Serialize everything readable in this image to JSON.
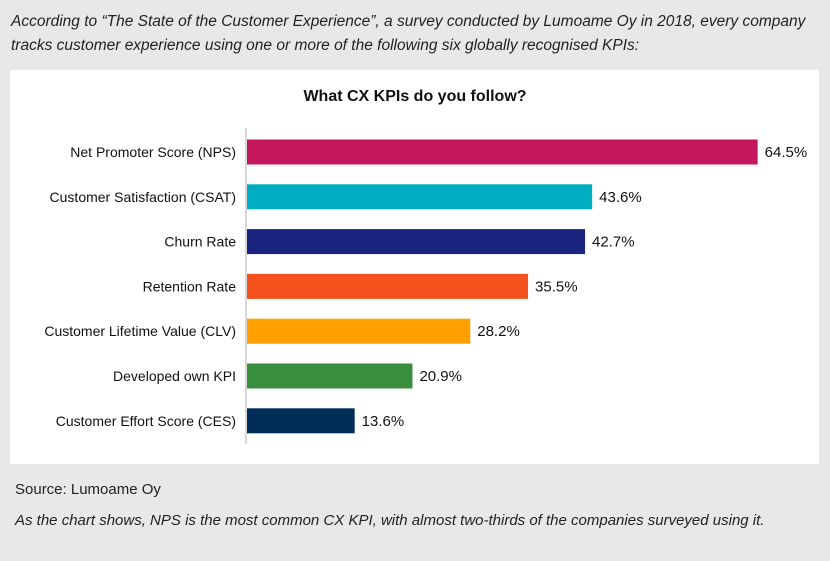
{
  "intro": "According to “The State of the Customer Experience”, a survey conducted by Lumoame Oy in 2018, every company tracks customer experience using one or more of the following six globally recognised KPIs:",
  "source": "Source: Lumoame Oy",
  "note": "As the chart shows, NPS is the most common CX KPI, with almost two-thirds of the companies surveyed using it.",
  "chart_data": {
    "type": "bar",
    "orientation": "horizontal",
    "title": "What CX KPIs do you follow?",
    "categories": [
      "Net Promoter Score (NPS)",
      "Customer Satisfaction (CSAT)",
      "Churn Rate",
      "Retention Rate",
      "Customer Lifetime Value (CLV)",
      "Developed own KPI",
      "Customer Effort Score (CES)"
    ],
    "values": [
      64.5,
      43.6,
      42.7,
      35.5,
      28.2,
      20.9,
      13.6
    ],
    "value_labels": [
      "64.5%",
      "43.6%",
      "42.7%",
      "35.5%",
      "28.2%",
      "20.9%",
      "13.6%"
    ],
    "colors": [
      "#c2185b",
      "#00acc1",
      "#1a237e",
      "#f4511e",
      "#ffa000",
      "#388e3c",
      "#002d57"
    ],
    "xlim": [
      0,
      100
    ],
    "xlabel": "",
    "ylabel": "",
    "grid": false,
    "legend": "none"
  }
}
